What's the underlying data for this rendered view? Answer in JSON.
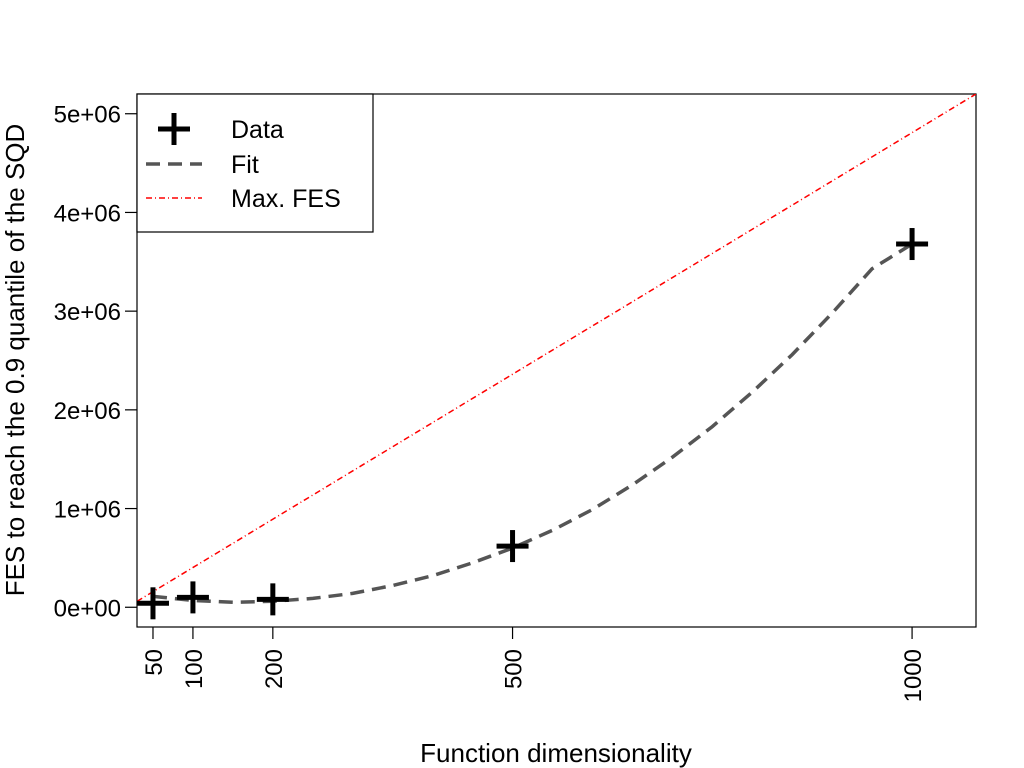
{
  "chart_data": {
    "type": "scatter",
    "xlabel": "Function dimensionality",
    "ylabel": "FES to reach the 0.9 quantile of the SQD",
    "xlim": [
      30,
      1080
    ],
    "ylim": [
      -200000,
      5200000
    ],
    "x_ticks": [
      50,
      100,
      200,
      500,
      1000
    ],
    "x_tick_labels": [
      "50",
      "100",
      "200",
      "500",
      "1000"
    ],
    "y_ticks": [
      0,
      1000000,
      2000000,
      3000000,
      4000000,
      5000000
    ],
    "y_tick_labels": [
      "0e+00",
      "1e+06",
      "2e+06",
      "3e+06",
      "4e+06",
      "5e+06"
    ],
    "legend_position": "top-left",
    "grid": false,
    "series": [
      {
        "name": "Data",
        "style": "plus-marker",
        "color": "#000000",
        "x": [
          50,
          100,
          200,
          500,
          1000
        ],
        "y": [
          40000,
          100000,
          80000,
          620000,
          3680000
        ]
      },
      {
        "name": "Fit",
        "style": "dashed",
        "color": "#555555",
        "x": [
          50,
          100,
          150,
          200,
          250,
          300,
          350,
          400,
          450,
          500,
          550,
          600,
          650,
          700,
          750,
          800,
          850,
          900,
          950,
          1000
        ],
        "y": [
          110000,
          70000,
          50000,
          60000,
          90000,
          140000,
          220000,
          320000,
          450000,
          600000,
          780000,
          990000,
          1240000,
          1520000,
          1830000,
          2180000,
          2560000,
          2980000,
          3430000,
          3680000
        ]
      },
      {
        "name": "Max. FES",
        "style": "dotdash",
        "color": "#ff0000",
        "x": [
          30,
          1080
        ],
        "y": [
          60000,
          5200000
        ]
      }
    ]
  }
}
